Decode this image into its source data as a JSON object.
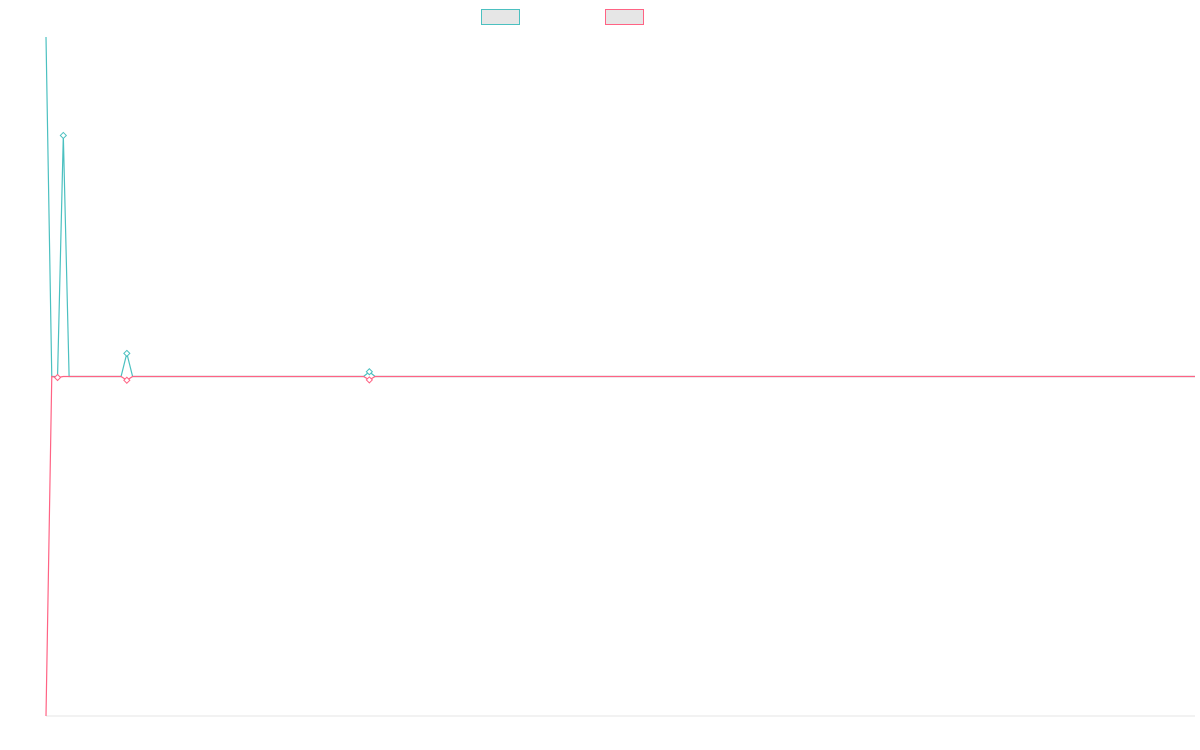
{
  "colors": {
    "series_1": "#4bc0c0",
    "series_2": "#ff6384",
    "axis": "#e5e5e5"
  },
  "chart_data": {
    "type": "line",
    "legend_placement": "top-center",
    "grid": false,
    "x_count": 200,
    "ylim": [
      -1,
      1
    ],
    "series": [
      {
        "label": "",
        "color_key": "series_1",
        "points": [
          [
            0,
            1
          ],
          [
            1,
            0
          ],
          [
            2,
            0
          ],
          [
            3,
            0.71
          ],
          [
            4,
            0
          ],
          [
            5,
            0
          ],
          [
            6,
            0
          ],
          [
            7,
            0
          ],
          [
            8,
            0
          ],
          [
            9,
            0
          ],
          [
            10,
            0
          ],
          [
            11,
            0
          ],
          [
            12,
            0
          ],
          [
            13,
            0
          ],
          [
            14,
            0.068
          ],
          [
            15,
            0
          ],
          [
            16,
            0
          ],
          [
            17,
            0
          ],
          [
            18,
            0
          ],
          [
            19,
            0
          ],
          [
            20,
            0
          ],
          [
            21,
            0
          ],
          [
            22,
            0
          ],
          [
            23,
            0
          ],
          [
            24,
            0
          ],
          [
            25,
            0
          ],
          [
            26,
            0
          ],
          [
            27,
            0
          ],
          [
            28,
            0
          ],
          [
            29,
            0
          ],
          [
            30,
            0
          ],
          [
            31,
            0
          ],
          [
            32,
            0
          ],
          [
            33,
            0
          ],
          [
            34,
            0
          ],
          [
            35,
            0
          ],
          [
            36,
            0
          ],
          [
            37,
            0
          ],
          [
            38,
            0
          ],
          [
            39,
            0
          ],
          [
            40,
            0
          ],
          [
            41,
            0
          ],
          [
            42,
            0
          ],
          [
            43,
            0
          ],
          [
            44,
            0
          ],
          [
            45,
            0
          ],
          [
            46,
            0
          ],
          [
            47,
            0
          ],
          [
            48,
            0
          ],
          [
            49,
            0
          ],
          [
            50,
            0
          ],
          [
            51,
            0
          ],
          [
            52,
            0
          ],
          [
            53,
            0
          ],
          [
            54,
            0
          ],
          [
            55,
            0
          ],
          [
            56,
            0.014
          ],
          [
            57,
            0
          ],
          [
            58,
            0
          ],
          [
            59,
            0
          ],
          [
            199,
            0
          ]
        ]
      },
      {
        "label": "",
        "color_key": "series_2",
        "points": [
          [
            0,
            -1
          ],
          [
            1,
            0
          ],
          [
            2,
            -0.003
          ],
          [
            3,
            0
          ],
          [
            4,
            0
          ],
          [
            5,
            0
          ],
          [
            6,
            0
          ],
          [
            7,
            0
          ],
          [
            8,
            0
          ],
          [
            9,
            0
          ],
          [
            10,
            0
          ],
          [
            11,
            0
          ],
          [
            12,
            0
          ],
          [
            13,
            0
          ],
          [
            14,
            -0.011
          ],
          [
            15,
            0
          ],
          [
            16,
            0
          ],
          [
            17,
            0
          ],
          [
            18,
            0
          ],
          [
            19,
            0
          ],
          [
            20,
            0
          ],
          [
            21,
            0
          ],
          [
            22,
            0
          ],
          [
            23,
            0
          ],
          [
            24,
            0
          ],
          [
            25,
            0
          ],
          [
            26,
            0
          ],
          [
            27,
            0
          ],
          [
            28,
            0
          ],
          [
            29,
            0
          ],
          [
            30,
            0
          ],
          [
            31,
            0
          ],
          [
            32,
            0
          ],
          [
            33,
            0
          ],
          [
            34,
            0
          ],
          [
            35,
            0
          ],
          [
            36,
            0
          ],
          [
            37,
            0
          ],
          [
            38,
            0
          ],
          [
            39,
            0
          ],
          [
            40,
            0
          ],
          [
            41,
            0
          ],
          [
            42,
            0
          ],
          [
            43,
            0
          ],
          [
            44,
            0
          ],
          [
            45,
            0
          ],
          [
            46,
            0
          ],
          [
            47,
            0
          ],
          [
            48,
            0
          ],
          [
            49,
            0
          ],
          [
            50,
            0
          ],
          [
            51,
            0
          ],
          [
            52,
            0
          ],
          [
            53,
            0
          ],
          [
            54,
            0
          ],
          [
            55,
            0
          ],
          [
            56,
            -0.01
          ],
          [
            57,
            0
          ],
          [
            58,
            0
          ],
          [
            59,
            0
          ],
          [
            199,
            0
          ]
        ]
      }
    ]
  }
}
